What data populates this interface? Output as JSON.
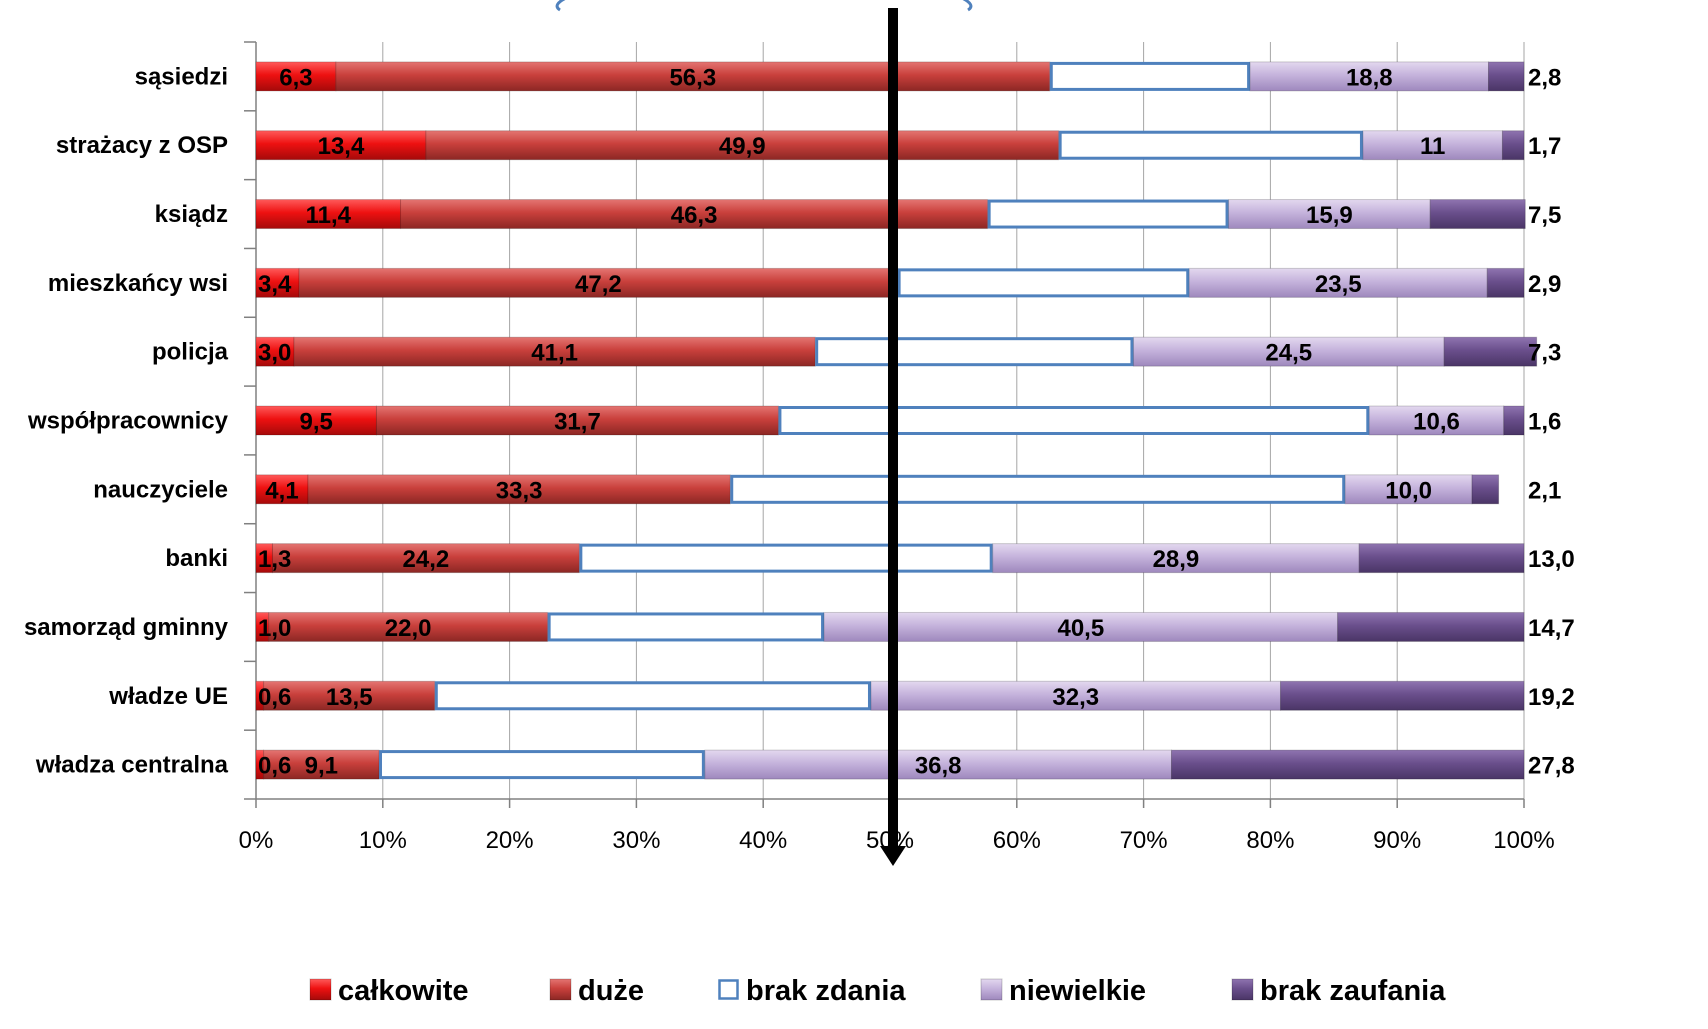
{
  "chart_data": {
    "type": "bar",
    "orientation": "horizontal",
    "stacked": "percent",
    "categories": [
      "sąsiedzi",
      "strażacy z OSP",
      "ksiądz",
      "mieszkańcy wsi",
      "policja",
      "współpracownicy",
      "nauczyciele",
      "banki",
      "samorząd gminny",
      "władze UE",
      "władza centralna"
    ],
    "series": [
      {
        "name": "całkowite",
        "color": "#ee1111",
        "values": [
          6.3,
          13.4,
          11.4,
          3.4,
          3.0,
          9.5,
          4.1,
          1.3,
          1.0,
          0.6,
          0.6
        ],
        "labels": [
          "6,3",
          "13,4",
          "11,4",
          "3,4",
          "3,0",
          "9,5",
          "4,1",
          "1,3",
          "1,0",
          "0,6",
          "0,6"
        ]
      },
      {
        "name": "duże",
        "color": "#c9403c",
        "values": [
          56.3,
          49.9,
          46.3,
          47.2,
          41.1,
          31.7,
          33.3,
          24.2,
          22.0,
          13.5,
          9.1
        ],
        "labels": [
          "56,3",
          "49,9",
          "46,3",
          "47,2",
          "41,1",
          "31,7",
          "33,3",
          "24,2",
          "22,0",
          "13,5",
          "9,1"
        ]
      },
      {
        "name": "brak zdania",
        "color": "#4f81bd",
        "values": [
          15.8,
          24.0,
          19.0,
          23.0,
          25.1,
          46.6,
          48.5,
          32.6,
          21.8,
          34.4,
          25.7
        ],
        "labels": [
          "",
          "",
          "",
          "",
          "",
          "",
          "",
          "",
          "",
          "",
          ""
        ]
      },
      {
        "name": "niewielkie",
        "color": "#c5b3dc",
        "values": [
          18.8,
          11.0,
          15.9,
          23.5,
          24.5,
          10.6,
          10.0,
          28.9,
          40.5,
          32.3,
          36.8
        ],
        "labels": [
          "18,8",
          "11",
          "15,9",
          "23,5",
          "24,5",
          "10,6",
          "10,0",
          "28,9",
          "40,5",
          "32,3",
          "36,8"
        ]
      },
      {
        "name": "brak zaufania",
        "color": "#6a4f8c",
        "values": [
          2.8,
          1.7,
          7.5,
          2.9,
          7.3,
          1.6,
          2.1,
          13.0,
          14.7,
          19.2,
          27.8
        ],
        "labels": [
          "2,8",
          "1,7",
          "7,5",
          "2,9",
          "7,3",
          "1,6",
          "2,1",
          "13,0",
          "14,7",
          "19,2",
          "27,8"
        ]
      }
    ],
    "x_ticks": [
      "0%",
      "10%",
      "20%",
      "30%",
      "40%",
      "50%",
      "60%",
      "70%",
      "80%",
      "90%",
      "100%"
    ],
    "xlim": [
      0,
      100
    ],
    "grid": true,
    "marker_line_at": 50,
    "legend_position": "bottom",
    "title": ""
  }
}
